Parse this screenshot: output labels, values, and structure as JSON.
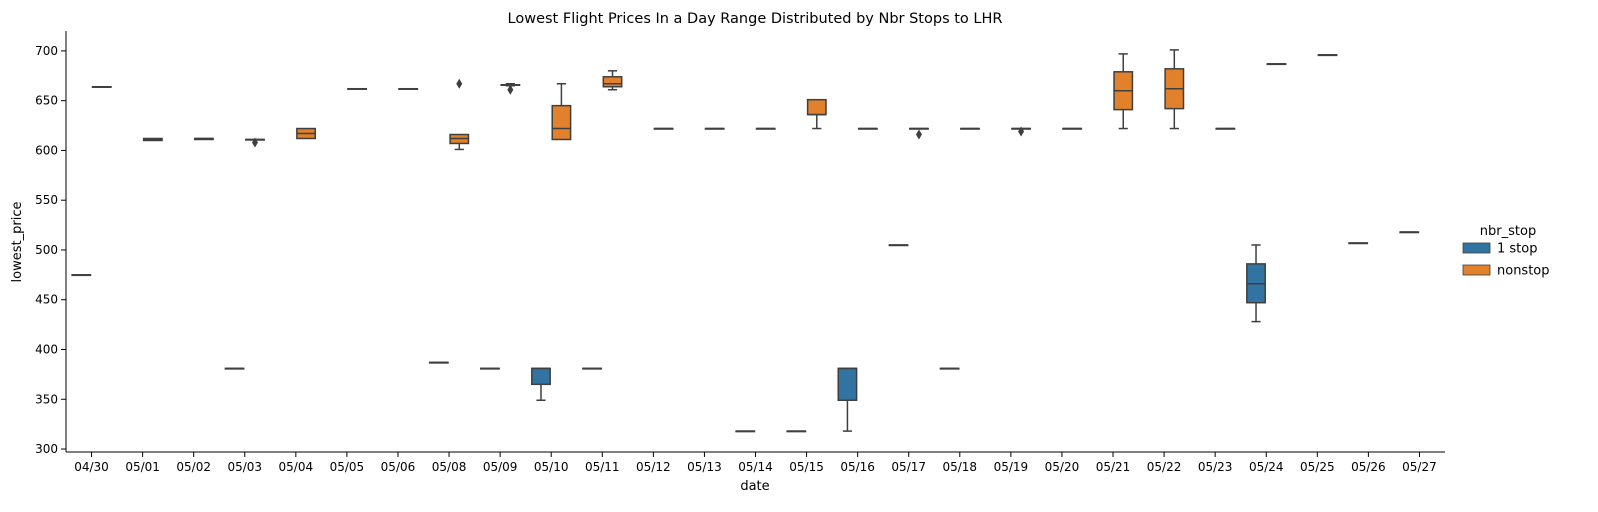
{
  "chart_data": {
    "type": "box",
    "title": "Lowest Flight Prices In a Day Range Distributed by Nbr Stops to LHR",
    "xlabel": "date",
    "ylabel": "lowest_price",
    "ylim": [
      297,
      720
    ],
    "yticks": [
      300,
      350,
      400,
      450,
      500,
      550,
      600,
      650,
      700
    ],
    "categories": [
      "04/30",
      "05/01",
      "05/02",
      "05/03",
      "05/04",
      "05/05",
      "05/06",
      "05/08",
      "05/09",
      "05/10",
      "05/11",
      "05/12",
      "05/13",
      "05/14",
      "05/15",
      "05/16",
      "05/17",
      "05/18",
      "05/19",
      "05/20",
      "05/21",
      "05/22",
      "05/23",
      "05/24",
      "05/25",
      "05/26",
      "05/27"
    ],
    "legend": {
      "title": "nbr_stop",
      "position": "right"
    },
    "grid": false,
    "series": [
      {
        "name": "1 stop",
        "color": "#3274a1",
        "boxes": {
          "04/30": {
            "min": 475,
            "q1": 475,
            "median": 475,
            "q3": 475,
            "max": 475
          },
          "05/03": {
            "min": 381,
            "q1": 381,
            "median": 381,
            "q3": 381,
            "max": 381
          },
          "05/08": {
            "min": 387,
            "q1": 387,
            "median": 387,
            "q3": 387,
            "max": 387
          },
          "05/09": {
            "min": 381,
            "q1": 381,
            "median": 381,
            "q3": 381,
            "max": 381
          },
          "05/10": {
            "min": 349,
            "q1": 365,
            "median": 381,
            "q3": 381,
            "max": 381
          },
          "05/11": {
            "min": 381,
            "q1": 381,
            "median": 381,
            "q3": 381,
            "max": 381
          },
          "05/14": {
            "min": 318,
            "q1": 318,
            "median": 318,
            "q3": 318,
            "max": 318
          },
          "05/15": {
            "min": 318,
            "q1": 318,
            "median": 318,
            "q3": 318,
            "max": 318
          },
          "05/16": {
            "min": 318,
            "q1": 349,
            "median": 381,
            "q3": 381,
            "max": 381
          },
          "05/17": {
            "min": 505,
            "q1": 505,
            "median": 505,
            "q3": 505,
            "max": 505
          },
          "05/18": {
            "min": 381,
            "q1": 381,
            "median": 381,
            "q3": 381,
            "max": 381
          },
          "05/24": {
            "min": 428,
            "q1": 447,
            "median": 466,
            "q3": 486,
            "max": 505
          },
          "05/26": {
            "min": 507,
            "q1": 507,
            "median": 507,
            "q3": 507,
            "max": 507
          },
          "05/27": {
            "min": 518,
            "q1": 518,
            "median": 518,
            "q3": 518,
            "max": 518
          }
        },
        "outliers": {}
      },
      {
        "name": "nonstop",
        "color": "#e1812c",
        "boxes": {
          "04/30": {
            "min": 664,
            "q1": 664,
            "median": 664,
            "q3": 664,
            "max": 664
          },
          "05/01": {
            "min": 610,
            "q1": 610,
            "median": 611,
            "q3": 612,
            "max": 612
          },
          "05/02": {
            "min": 611,
            "q1": 611,
            "median": 612,
            "q3": 612,
            "max": 612
          },
          "05/03": {
            "min": 611,
            "q1": 611,
            "median": 611,
            "q3": 611,
            "max": 611
          },
          "05/04": {
            "min": 612,
            "q1": 612,
            "median": 617,
            "q3": 622,
            "max": 622
          },
          "05/05": {
            "min": 662,
            "q1": 662,
            "median": 662,
            "q3": 662,
            "max": 662
          },
          "05/06": {
            "min": 662,
            "q1": 662,
            "median": 662,
            "q3": 662,
            "max": 662
          },
          "05/08": {
            "min": 601,
            "q1": 607,
            "median": 612,
            "q3": 616,
            "max": 616
          },
          "05/09": {
            "min": 665,
            "q1": 666,
            "median": 666,
            "q3": 666,
            "max": 667
          },
          "05/10": {
            "min": 611,
            "q1": 611,
            "median": 622,
            "q3": 645,
            "max": 667
          },
          "05/11": {
            "min": 661,
            "q1": 664,
            "median": 667,
            "q3": 674,
            "max": 680
          },
          "05/12": {
            "min": 622,
            "q1": 622,
            "median": 622,
            "q3": 622,
            "max": 622
          },
          "05/13": {
            "min": 622,
            "q1": 622,
            "median": 622,
            "q3": 622,
            "max": 622
          },
          "05/14": {
            "min": 622,
            "q1": 622,
            "median": 622,
            "q3": 622,
            "max": 622
          },
          "05/15": {
            "min": 622,
            "q1": 636,
            "median": 636,
            "q3": 651,
            "max": 651
          },
          "05/16": {
            "min": 622,
            "q1": 622,
            "median": 622,
            "q3": 622,
            "max": 622
          },
          "05/17": {
            "min": 622,
            "q1": 622,
            "median": 622,
            "q3": 622,
            "max": 622
          },
          "05/18": {
            "min": 622,
            "q1": 622,
            "median": 622,
            "q3": 622,
            "max": 622
          },
          "05/19": {
            "min": 622,
            "q1": 622,
            "median": 622,
            "q3": 622,
            "max": 622
          },
          "05/20": {
            "min": 622,
            "q1": 622,
            "median": 622,
            "q3": 622,
            "max": 622
          },
          "05/21": {
            "min": 622,
            "q1": 641,
            "median": 660,
            "q3": 679,
            "max": 697
          },
          "05/22": {
            "min": 622,
            "q1": 642,
            "median": 662,
            "q3": 682,
            "max": 701
          },
          "05/23": {
            "min": 622,
            "q1": 622,
            "median": 622,
            "q3": 622,
            "max": 622
          },
          "05/24": {
            "min": 687,
            "q1": 687,
            "median": 687,
            "q3": 687,
            "max": 687
          },
          "05/25": {
            "min": 696,
            "q1": 696,
            "median": 696,
            "q3": 696,
            "max": 696
          }
        },
        "outliers": {
          "05/03": [
            608
          ],
          "05/08": [
            667
          ],
          "05/09": [
            661
          ],
          "05/17": [
            616
          ],
          "05/19": [
            619
          ]
        }
      }
    ]
  }
}
